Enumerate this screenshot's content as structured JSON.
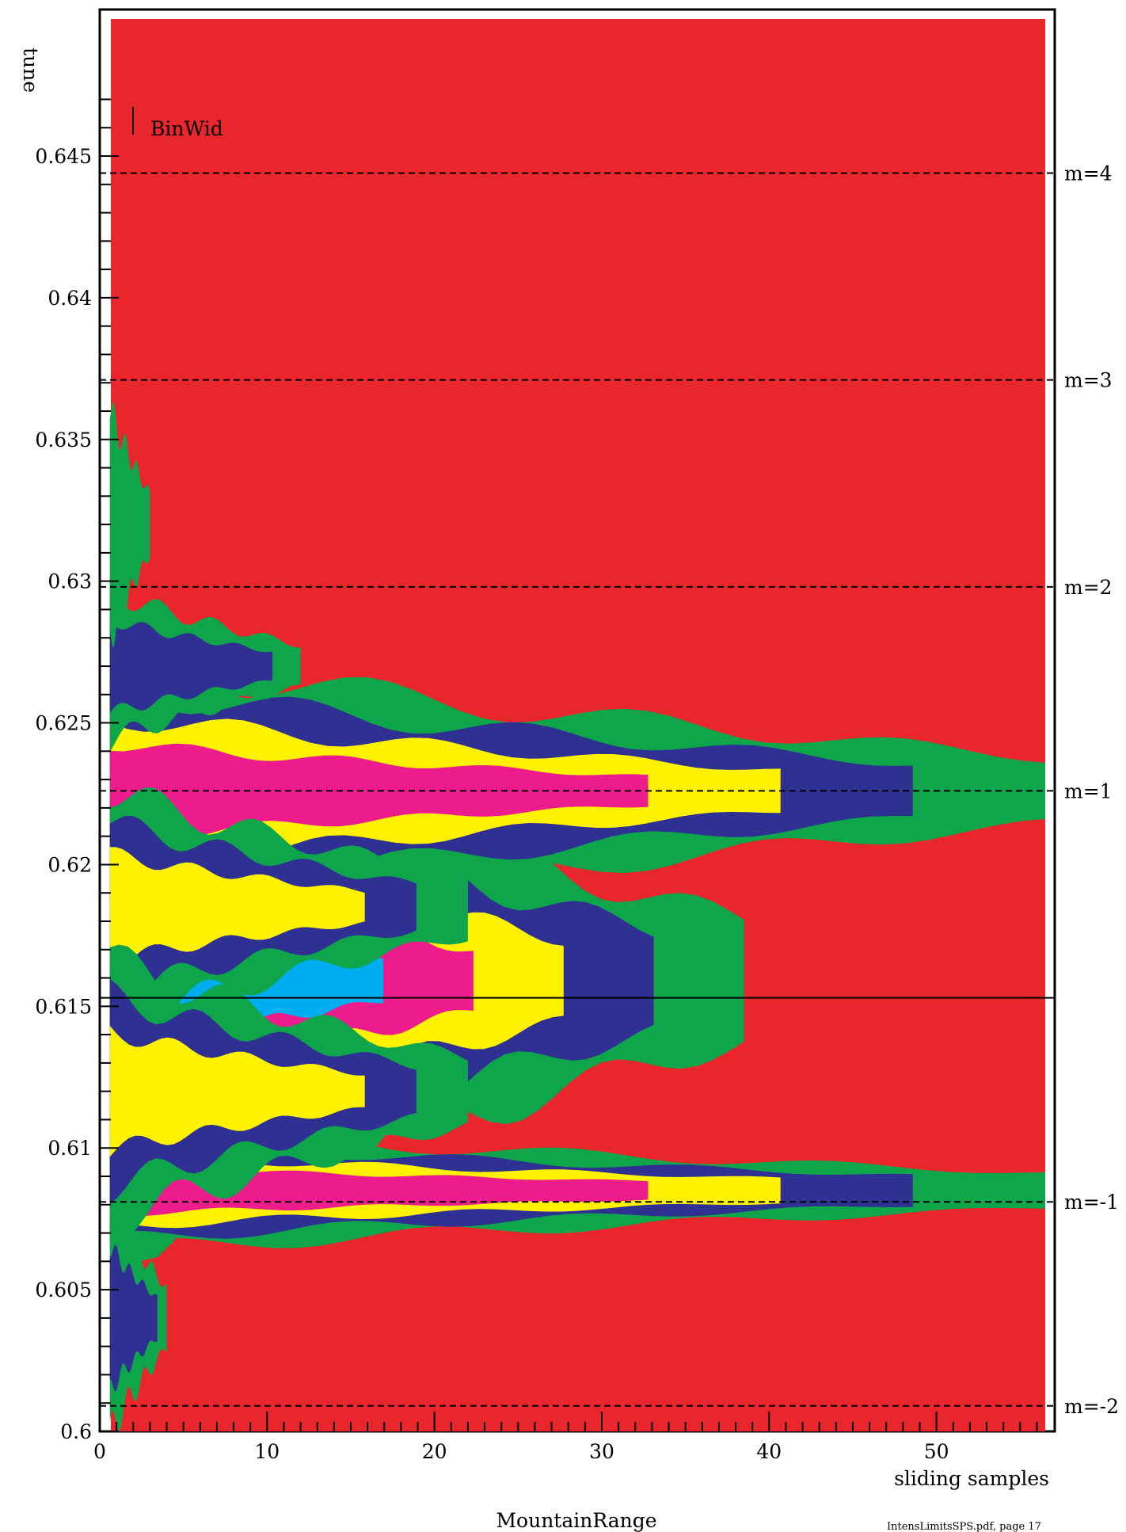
{
  "chart_data": {
    "type": "heatmap",
    "title": "",
    "xlabel": "sliding samples",
    "ylabel": "tune",
    "bottom_caption": "MountainRange",
    "footer": "IntensLimitsSPS.pdf, page 17",
    "legend_label": "BinWid",
    "xlim": [
      0,
      56.5
    ],
    "ylim": [
      0.6,
      0.649
    ],
    "xticks": [
      0,
      10,
      20,
      30,
      40,
      50
    ],
    "xtick_labels": [
      "0",
      "10",
      "20",
      "30",
      "40",
      "50"
    ],
    "yticks": [
      0.6,
      0.605,
      0.61,
      0.615,
      0.62,
      0.625,
      0.63,
      0.635,
      0.64,
      0.645
    ],
    "ytick_labels": [
      "0.6",
      "0.605",
      "0.61",
      "0.615",
      "0.62",
      "0.625",
      "0.63",
      "0.635",
      "0.64",
      "0.645"
    ],
    "background_level_color": "#E8262B",
    "level_colors": [
      "#E8262B",
      "#0FA64B",
      "#2E3192",
      "#FFF200",
      "#EC1C8C",
      "#00AEEF"
    ],
    "reference_lines": [
      {
        "label": "m=4",
        "y": 0.6444,
        "style": "dashed"
      },
      {
        "label": "m=3",
        "y": 0.6371,
        "style": "dashed"
      },
      {
        "label": "m=2",
        "y": 0.6298,
        "style": "dashed"
      },
      {
        "label": "m=1",
        "y": 0.6226,
        "style": "dashed"
      },
      {
        "label": "",
        "y": 0.6153,
        "style": "solid"
      },
      {
        "label": "m=-1",
        "y": 0.6081,
        "style": "dashed"
      },
      {
        "label": "m=-2",
        "y": 0.6009,
        "style": "dashed"
      }
    ],
    "bands": [
      {
        "center": 0.6159,
        "half_width_start": 0.009,
        "extent_x": 38.5,
        "levels": 5
      },
      {
        "center": 0.6226,
        "half_width_start": 0.0045,
        "extent_x": 56.5,
        "levels": 4
      },
      {
        "center": 0.6085,
        "half_width_start": 0.002,
        "extent_x": 56.5,
        "levels": 4
      },
      {
        "center": 0.6185,
        "half_width_start": 0.004,
        "extent_x": 22.0,
        "levels": 3
      },
      {
        "center": 0.612,
        "half_width_start": 0.0045,
        "extent_x": 22.0,
        "levels": 3
      },
      {
        "center": 0.627,
        "half_width_start": 0.0025,
        "extent_x": 12.0,
        "levels": 2
      },
      {
        "center": 0.604,
        "half_width_start": 0.004,
        "extent_x": 4.0,
        "levels": 2
      },
      {
        "center": 0.632,
        "half_width_start": 0.004,
        "extent_x": 3.0,
        "levels": 1
      }
    ]
  }
}
